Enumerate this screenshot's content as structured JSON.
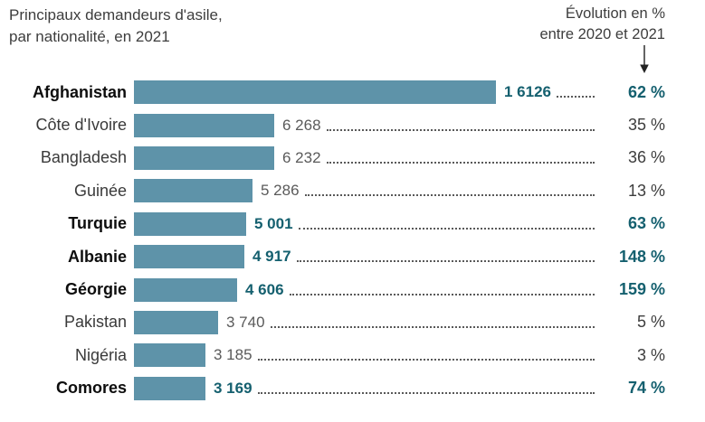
{
  "title": {
    "line1": "Principaux demandeurs d'asile,",
    "line2": "par nationalité, en 2021"
  },
  "right_header": {
    "line1": "Évolution en %",
    "line2": "entre 2020 et 2021"
  },
  "icons": {
    "down_arrow": "arrow pointing down to evolution column"
  },
  "colors": {
    "bar": "#5e93a9",
    "accent_teal": "#15606f",
    "text_dark": "#3d3d3d",
    "text_gray": "#5a5a5a"
  },
  "chart_data": {
    "type": "bar",
    "orientation": "horizontal",
    "title": "Principaux demandeurs d'asile, par nationalité, en 2021",
    "secondary_column_label": "Évolution en % entre 2020 et 2021",
    "value_max": 16126,
    "grid": false,
    "categories": [
      "Afghanistan",
      "Côte d'Ivoire",
      "Bangladesh",
      "Guinée",
      "Turquie",
      "Albanie",
      "Géorgie",
      "Pakistan",
      "Nigéria",
      "Comores"
    ],
    "values": [
      16126,
      6268,
      6232,
      5286,
      5001,
      4917,
      4606,
      3740,
      3185,
      3169
    ],
    "evolution_percent": [
      62,
      35,
      36,
      13,
      63,
      148,
      159,
      5,
      3,
      74
    ],
    "rows": [
      {
        "label": "Afghanistan",
        "value": 16126,
        "value_display": "1 6126",
        "evolution": "62 %",
        "highlight": true
      },
      {
        "label": "Côte d'Ivoire",
        "value": 6268,
        "value_display": "6 268",
        "evolution": "35 %",
        "highlight": false
      },
      {
        "label": "Bangladesh",
        "value": 6232,
        "value_display": "6 232",
        "evolution": "36 %",
        "highlight": false
      },
      {
        "label": "Guinée",
        "value": 5286,
        "value_display": "5 286",
        "evolution": "13 %",
        "highlight": false
      },
      {
        "label": "Turquie",
        "value": 5001,
        "value_display": "5 001",
        "evolution": "63 %",
        "highlight": true
      },
      {
        "label": "Albanie",
        "value": 4917,
        "value_display": "4 917",
        "evolution": "148 %",
        "highlight": true
      },
      {
        "label": "Géorgie",
        "value": 4606,
        "value_display": "4 606",
        "evolution": "159 %",
        "highlight": true
      },
      {
        "label": "Pakistan",
        "value": 3740,
        "value_display": "3 740",
        "evolution": "5 %",
        "highlight": false
      },
      {
        "label": "Nigéria",
        "value": 3185,
        "value_display": "3 185",
        "evolution": "3 %",
        "highlight": false
      },
      {
        "label": "Comores",
        "value": 3169,
        "value_display": "3 169",
        "evolution": "74 %",
        "highlight": true
      }
    ]
  }
}
